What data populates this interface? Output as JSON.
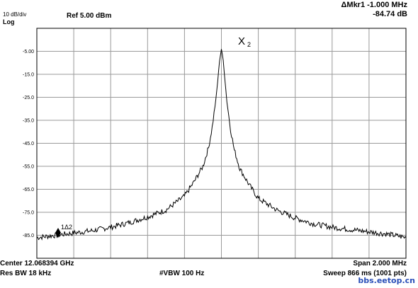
{
  "header": {
    "scale": "10 dB/div",
    "log": "Log",
    "ref": "Ref 5.00 dBm",
    "marker_delta": "ΔMkr1 -1.000 MHz",
    "marker_value": "-84.74 dB"
  },
  "footer": {
    "center": "Center 12.068394 GHz",
    "res_bw": "Res BW 18 kHz",
    "vbw": "#VBW 100 Hz",
    "span": "Span 2.000 MHz",
    "sweep": "Sweep  866 ms (1001 pts)"
  },
  "markers": {
    "peak": "X",
    "peak_index": "2",
    "delta": "1Δ2"
  },
  "chart_data": {
    "type": "line",
    "y_ticks": [
      "-5.00",
      "-15.0",
      "-25.0",
      "-35.0",
      "-45.0",
      "-55.0",
      "-65.0",
      "-75.0",
      "-85.0"
    ],
    "ylim": [
      -95,
      5
    ],
    "xlim": [
      -1.0,
      1.0
    ],
    "x_unit": "MHz offset from center",
    "series": [
      {
        "x": [
          -1.0,
          -0.9,
          -0.8,
          -0.7,
          -0.6,
          -0.5,
          -0.4,
          -0.3,
          -0.2,
          -0.15,
          -0.1,
          -0.07,
          -0.05,
          -0.03,
          -0.02,
          -0.01,
          0.0,
          0.01,
          0.02,
          0.03,
          0.05,
          0.07,
          0.1,
          0.15,
          0.2,
          0.3,
          0.4,
          0.5,
          0.6,
          0.7,
          0.8,
          0.9,
          1.0
        ],
        "y": [
          -86,
          -85,
          -84,
          -83,
          -81.5,
          -79.5,
          -77,
          -74,
          -68,
          -62,
          -55,
          -47,
          -38,
          -26,
          -18,
          -9,
          -4,
          -9,
          -18,
          -27,
          -39,
          -48,
          -56,
          -63,
          -69,
          -74,
          -77.5,
          -80,
          -81.5,
          -82.5,
          -83.5,
          -84.5,
          -86
        ]
      }
    ]
  },
  "colors": {
    "trace": "#000000",
    "grid": "#9a9a9a",
    "watermark": "#2a4fb8"
  },
  "watermark": "bbs.eetop.cn"
}
